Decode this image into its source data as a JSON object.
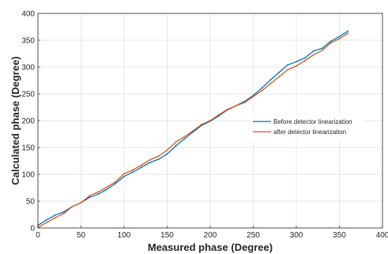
{
  "chart_data": {
    "type": "line",
    "title": "",
    "xlabel": "Measured phase (Degree)",
    "ylabel": "Calculated phase (Degree)",
    "xlim": [
      0,
      400
    ],
    "ylim": [
      0,
      400
    ],
    "xticks": [
      0,
      50,
      100,
      150,
      200,
      250,
      300,
      350,
      400
    ],
    "yticks": [
      0,
      50,
      100,
      150,
      200,
      250,
      300,
      350,
      400
    ],
    "grid": true,
    "legend_position": "center-right",
    "x": [
      0,
      10,
      20,
      30,
      40,
      50,
      60,
      70,
      80,
      90,
      100,
      110,
      120,
      130,
      140,
      150,
      160,
      170,
      180,
      190,
      200,
      210,
      220,
      230,
      240,
      250,
      260,
      270,
      280,
      290,
      300,
      310,
      320,
      330,
      340,
      350,
      360
    ],
    "series": [
      {
        "name": "Before detector linearization",
        "color": "#0072bd",
        "values": [
          5,
          15,
          24,
          30,
          40,
          47,
          57,
          63,
          72,
          83,
          96,
          104,
          113,
          122,
          128,
          138,
          153,
          166,
          179,
          191,
          199,
          209,
          220,
          228,
          236,
          247,
          261,
          276,
          290,
          304,
          310,
          317,
          330,
          335,
          348,
          357,
          367
        ]
      },
      {
        "name": "after detector linearization",
        "color": "#d95319",
        "values": [
          1,
          10,
          19,
          27,
          40,
          47,
          60,
          67,
          76,
          86,
          101,
          108,
          117,
          127,
          134,
          145,
          160,
          170,
          181,
          193,
          200,
          211,
          221,
          228,
          234,
          245,
          256,
          269,
          282,
          295,
          302,
          312,
          323,
          331,
          345,
          353,
          363
        ]
      }
    ]
  }
}
